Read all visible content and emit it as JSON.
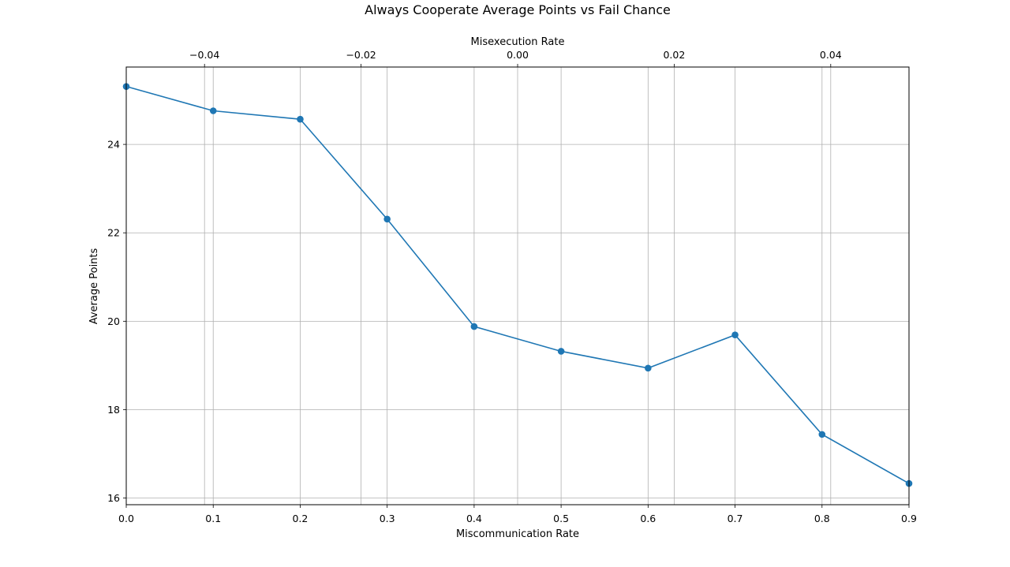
{
  "chart_data": {
    "type": "line",
    "title": "Always Cooperate Average Points vs Fail Chance",
    "xlabel": "Miscommunication Rate",
    "ylabel": "Average Points",
    "x2label": "Misexecution Rate",
    "xlim": [
      0.0,
      0.9
    ],
    "ylim": [
      15.85,
      25.75
    ],
    "x2lim": [
      -0.05,
      0.05
    ],
    "x_ticks": [
      "0.0",
      "0.1",
      "0.2",
      "0.3",
      "0.4",
      "0.5",
      "0.6",
      "0.7",
      "0.8",
      "0.9"
    ],
    "y_ticks": [
      "16",
      "18",
      "20",
      "22",
      "24"
    ],
    "x2_ticks": [
      "−0.04",
      "−0.02",
      "0.00",
      "0.02",
      "0.04"
    ],
    "grid": true,
    "color": "#1f77b4",
    "series": [
      {
        "x": [
          0.0,
          0.1,
          0.2,
          0.3,
          0.4,
          0.5,
          0.6,
          0.7,
          0.8,
          0.9
        ],
        "values": [
          25.31,
          24.76,
          24.57,
          22.31,
          19.88,
          19.32,
          18.94,
          19.69,
          17.44,
          16.33
        ]
      }
    ]
  }
}
